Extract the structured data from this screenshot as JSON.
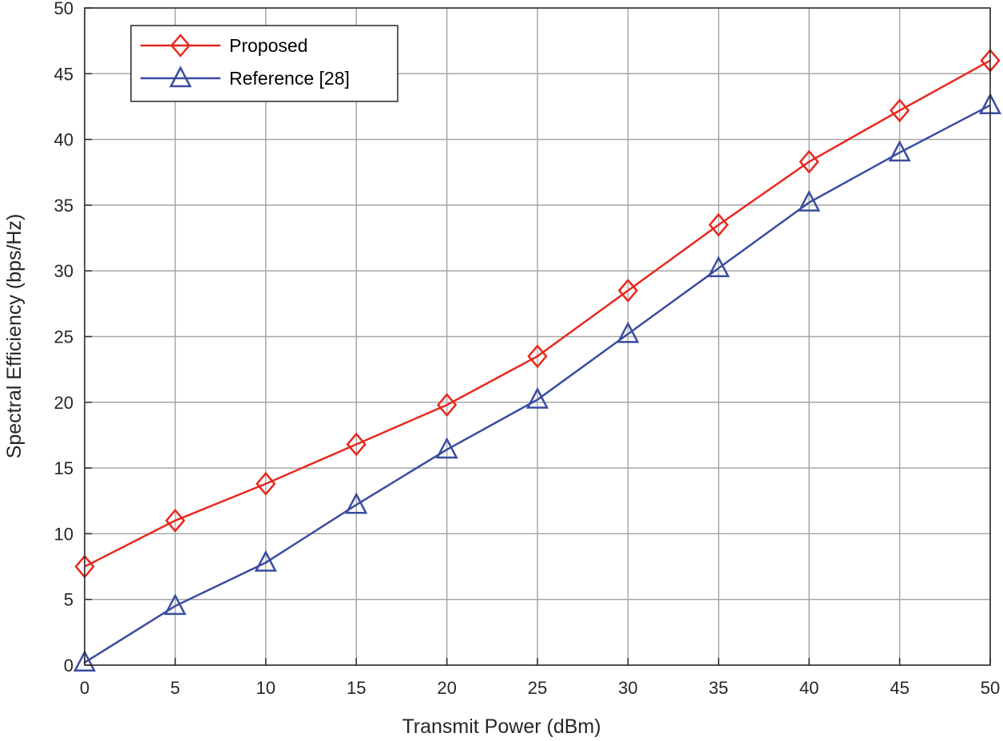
{
  "chart_data": {
    "type": "line",
    "xlabel": "Transmit Power (dBm)",
    "ylabel": "Spectral Efficiency (bps/Hz)",
    "xlim": [
      0,
      50
    ],
    "ylim": [
      0,
      50
    ],
    "x": [
      0,
      5,
      10,
      15,
      20,
      25,
      30,
      35,
      40,
      45,
      50
    ],
    "xticks": [
      "0",
      "5",
      "10",
      "15",
      "20",
      "25",
      "30",
      "35",
      "40",
      "45",
      "50"
    ],
    "yticks": [
      "0",
      "5",
      "10",
      "15",
      "20",
      "25",
      "30",
      "35",
      "40",
      "45",
      "50"
    ],
    "grid": true,
    "legend_position": "top-left",
    "series": [
      {
        "name": "Proposed",
        "color": "#e8281f",
        "marker": "diamond",
        "values": [
          7.5,
          11.0,
          13.8,
          16.8,
          19.8,
          23.5,
          28.5,
          33.5,
          38.3,
          42.2,
          46.0
        ]
      },
      {
        "name": "Reference [28]",
        "color": "#3a4ca0",
        "marker": "triangle",
        "values": [
          0.2,
          4.5,
          7.8,
          12.2,
          16.4,
          20.2,
          25.2,
          30.2,
          35.2,
          39.0,
          42.6
        ]
      }
    ]
  }
}
